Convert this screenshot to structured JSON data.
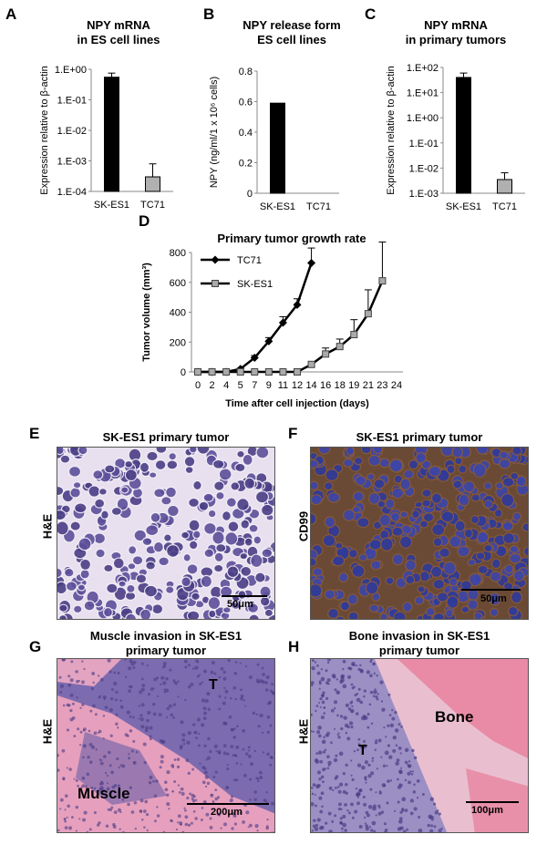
{
  "panels": {
    "A": {
      "letter": "A",
      "title_line1": "NPY mRNA",
      "title_line2": "in ES cell lines",
      "ylabel": "Expression relative to β-actin"
    },
    "B": {
      "letter": "B",
      "title_line1": "NPY release  form",
      "title_line2": "ES cell lines",
      "ylabel": "NPY (ng/ml/1 x 10⁶ cells)"
    },
    "C": {
      "letter": "C",
      "title_line1": "NPY mRNA",
      "title_line2": "in primary tumors",
      "ylabel": "Expression relative to β-actin"
    },
    "D": {
      "letter": "D",
      "title": "Primary tumor growth rate",
      "ylabel": "Tumor volume (mm³)",
      "xlabel": "Time after cell injection  (days)"
    },
    "E": {
      "letter": "E",
      "title": "SK-ES1 primary tumor",
      "side_label": "H&E",
      "scale": "50μm"
    },
    "F": {
      "letter": "F",
      "title": "SK-ES1 primary tumor",
      "side_label": "CD99",
      "scale": "50μm"
    },
    "G": {
      "letter": "G",
      "title_line1": "Muscle invasion in SK-ES1",
      "title_line2": "primary tumor",
      "side_label": "H&E",
      "scale": "200μm",
      "label_T": "T",
      "label_tissue": "Muscle"
    },
    "H": {
      "letter": "H",
      "title_line1": "Bone invasion in SK-ES1",
      "title_line2": "primary tumor",
      "side_label": "H&E",
      "scale": "100μm",
      "label_T": "T",
      "label_tissue": "Bone"
    }
  },
  "colors": {
    "black_bar": "#000000",
    "grey_bar": "#b0b0b0",
    "he_pink": "#d98aa8",
    "he_purple": "#6b5aa6",
    "cd99_blue": "#3a3f9a",
    "cd99_brown": "#7a4a2a"
  },
  "chart_data": [
    {
      "panel": "A",
      "type": "bar",
      "scale": "log",
      "categories": [
        "SK-ES1",
        "TC71"
      ],
      "values": [
        0.55,
        0.0003
      ],
      "errors": [
        0.2,
        0.0005
      ],
      "yticks": [
        "1.E+00",
        "1.E-01",
        "1.E-02",
        "1.E-03",
        "1.E-04"
      ],
      "ylim": [
        0.0001,
        1
      ],
      "colors": [
        "#000000",
        "#b0b0b0"
      ]
    },
    {
      "panel": "B",
      "type": "bar",
      "categories": [
        "SK-ES1",
        "TC71"
      ],
      "values": [
        0.59,
        0
      ],
      "yticks": [
        "0.8",
        "0.6",
        "0.4",
        "0.2",
        "0"
      ],
      "ylim": [
        0,
        0.8
      ],
      "colors": [
        "#000000",
        "#b0b0b0"
      ]
    },
    {
      "panel": "C",
      "type": "bar",
      "scale": "log",
      "categories": [
        "SK-ES1",
        "TC71"
      ],
      "values": [
        40,
        0.0035
      ],
      "errors": [
        20,
        0.003
      ],
      "yticks": [
        "1.E+02",
        "1.E+01",
        "1.E+00",
        "1.E-01",
        "1.E-02",
        "1.E-03"
      ],
      "ylim": [
        0.001,
        100
      ],
      "colors": [
        "#000000",
        "#b0b0b0"
      ]
    },
    {
      "panel": "D",
      "type": "line",
      "x_ticks": [
        "0",
        "2",
        "4",
        "5",
        "7",
        "9",
        "11",
        "12",
        "14",
        "16",
        "18",
        "19",
        "21",
        "23",
        "24"
      ],
      "yticks": [
        "800",
        "600",
        "400",
        "200",
        "0"
      ],
      "ylim": [
        0,
        800
      ],
      "legend_position": "top-left",
      "series": [
        {
          "name": "TC71",
          "marker": "diamond",
          "color": "#000000",
          "x_index": [
            0,
            1,
            2,
            3,
            4,
            5,
            6,
            7,
            8
          ],
          "values": [
            0,
            0,
            0,
            20,
            95,
            205,
            330,
            450,
            730
          ],
          "errors": [
            0,
            0,
            0,
            5,
            15,
            25,
            40,
            40,
            100
          ]
        },
        {
          "name": "SK-ES1",
          "marker": "square",
          "color": "#888888",
          "x_index": [
            0,
            1,
            2,
            3,
            4,
            5,
            6,
            7,
            8,
            9,
            10,
            11,
            12,
            13,
            14
          ],
          "values": [
            0,
            0,
            0,
            0,
            0,
            0,
            0,
            0,
            50,
            120,
            170,
            250,
            390,
            610,
            0
          ],
          "errors": [
            0,
            0,
            0,
            0,
            0,
            0,
            0,
            0,
            10,
            40,
            50,
            100,
            160,
            260,
            0
          ]
        }
      ]
    }
  ]
}
